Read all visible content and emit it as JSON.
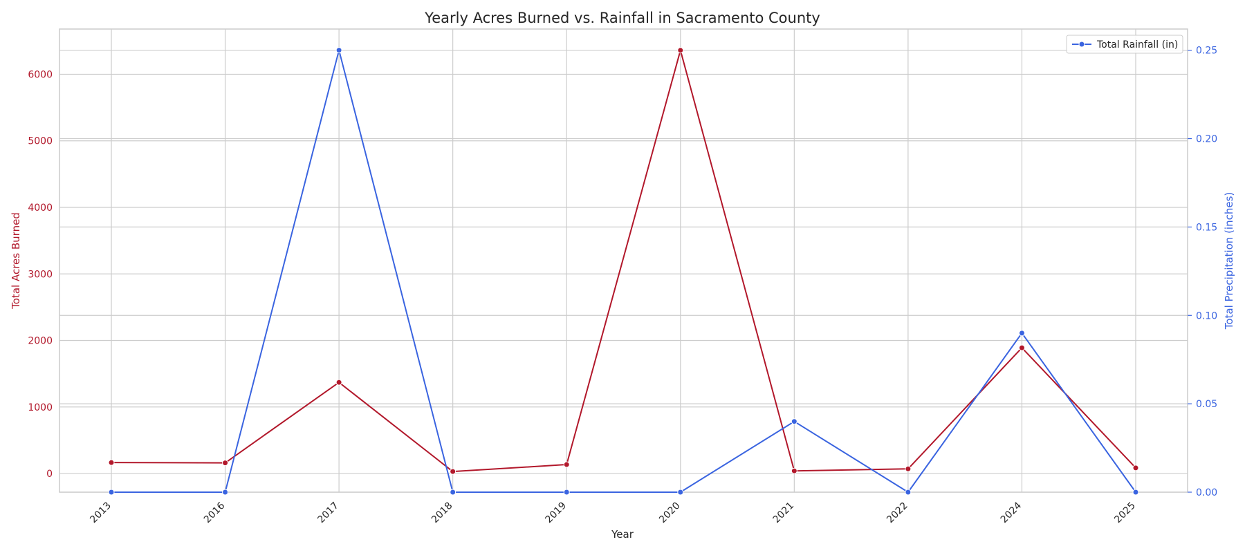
{
  "chart_data": {
    "type": "line",
    "title": "Yearly Acres Burned vs. Rainfall in Sacramento County",
    "xlabel": "Year",
    "ylabel_left": "Total Acres Burned",
    "ylabel_right": "Total Precipitation (inches)",
    "categories": [
      "2013",
      "2016",
      "2017",
      "2018",
      "2019",
      "2020",
      "2021",
      "2022",
      "2024",
      "2025"
    ],
    "ylim_left": [
      -280,
      6680
    ],
    "ylim_right": [
      0.0,
      0.262
    ],
    "yticks_left": [
      0,
      1000,
      2000,
      3000,
      4000,
      5000,
      6000
    ],
    "yticks_right": [
      0.0,
      0.05,
      0.1,
      0.15,
      0.2,
      0.25
    ],
    "yticks_right_labels": [
      "0.00",
      "0.05",
      "0.10",
      "0.15",
      "0.20",
      "0.25"
    ],
    "grid": true,
    "legend": {
      "placement": "top-right",
      "entries": [
        "Total Rainfall (in)"
      ]
    },
    "colors": {
      "acres": "#b2182b",
      "rainfall": "#3a64e0",
      "grid": "#cccccc",
      "text": "#262626"
    },
    "series": [
      {
        "key": "acres",
        "axis": "left",
        "values": [
          165,
          160,
          1370,
          30,
          135,
          6360,
          40,
          70,
          1890,
          85
        ]
      },
      {
        "key": "rainfall",
        "axis": "right",
        "name": "Total Rainfall (in)",
        "values": [
          0.0,
          0.0,
          0.25,
          0.0,
          0.0,
          0.0,
          0.04,
          0.0,
          0.09,
          0.0
        ]
      }
    ]
  }
}
